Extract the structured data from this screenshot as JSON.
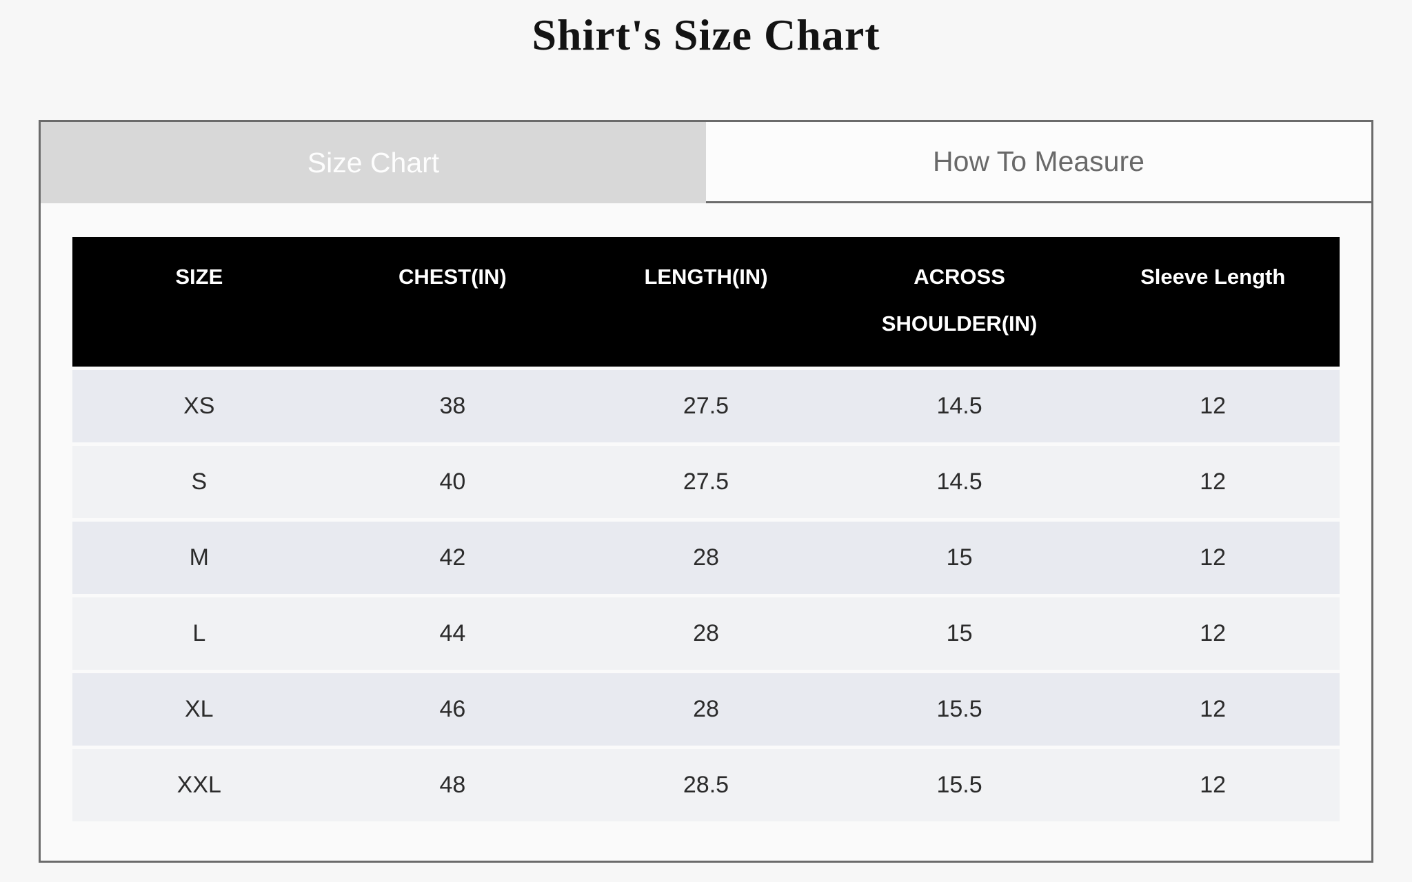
{
  "page": {
    "title": "Shirt's Size Chart"
  },
  "tabs": [
    {
      "label": "Size Chart",
      "active": true
    },
    {
      "label": "How To Measure",
      "active": false
    }
  ],
  "table": {
    "headers": [
      "SIZE",
      "CHEST(IN)",
      "LENGTH(IN)",
      "ACROSS SHOULDER(IN)",
      "Sleeve Length"
    ],
    "rows": [
      [
        "XS",
        "38",
        "27.5",
        "14.5",
        "12"
      ],
      [
        "S",
        "40",
        "27.5",
        "14.5",
        "12"
      ],
      [
        "M",
        "42",
        "28",
        "15",
        "12"
      ],
      [
        "L",
        "44",
        "28",
        "15",
        "12"
      ],
      [
        "XL",
        "46",
        "28",
        "15.5",
        "12"
      ],
      [
        "XXL",
        "48",
        "28.5",
        "15.5",
        "12"
      ]
    ]
  },
  "colors": {
    "page_background": "#f7f7f7",
    "widget_border": "#6b6b6b",
    "active_tab_background": "#d8d8d8",
    "active_tab_text": "#fdfdfd",
    "inactive_tab_background": "#fcfcfc",
    "inactive_tab_text": "#696969",
    "table_header_background": "#000000",
    "table_header_text": "#ffffff",
    "row_odd_background": "#e8eaf0",
    "row_even_background": "#f1f2f4"
  }
}
